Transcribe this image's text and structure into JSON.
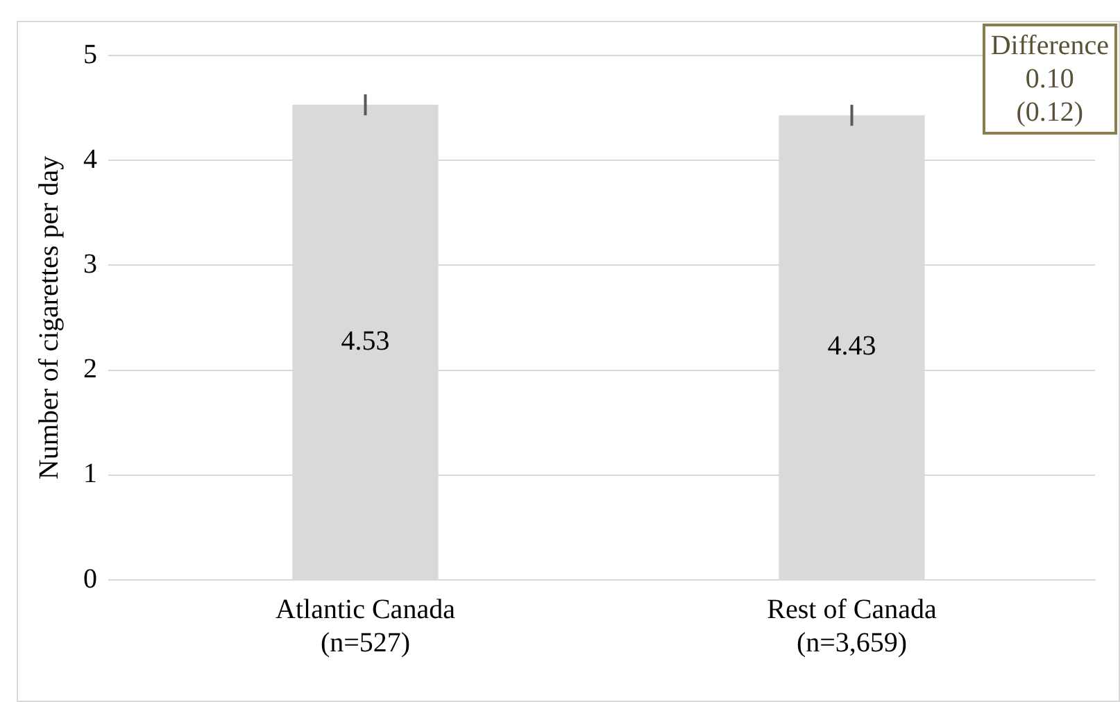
{
  "chart_data": {
    "type": "bar",
    "ylabel": "Number of cigarettes per day",
    "categories": [
      "Atlantic Canada\n(n=527)",
      "Rest of Canada\n(n=3,659)"
    ],
    "values": [
      4.53,
      4.43
    ],
    "color": "#d9d9d9",
    "errors": [
      0.1,
      0.1
    ],
    "ylim": [
      0,
      5
    ],
    "yticks": [
      0,
      1,
      2,
      3,
      4,
      5
    ],
    "grid": "y",
    "legend": false,
    "data_labels": true,
    "annotations": [
      "Difference\n0.10\n(0.12)"
    ]
  }
}
